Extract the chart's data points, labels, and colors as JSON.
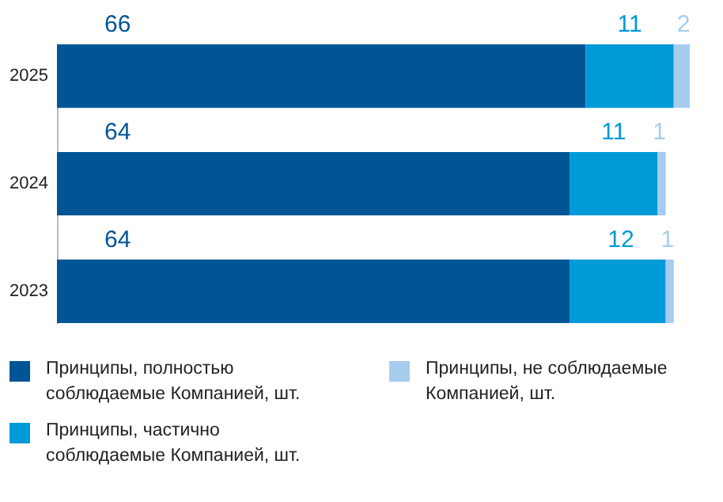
{
  "chart_data": {
    "type": "bar",
    "orientation": "horizontal",
    "stacked": true,
    "data_labels": true,
    "legend": "bottom",
    "categories": [
      "2025",
      "2024",
      "2023"
    ],
    "series": [
      {
        "name": "Принципы, полностью соблюдаемые Компанией, шт.",
        "color": "#005596",
        "values": [
          66,
          64,
          64
        ]
      },
      {
        "name": "Принципы, частично соблюдаемые Компанией, шт.",
        "color": "#009ad8",
        "values": [
          11,
          11,
          12
        ]
      },
      {
        "name": "Принципы, не соблюдаемые Компанией, шт.",
        "color": "#a6cdee",
        "values": [
          2,
          1,
          1
        ]
      }
    ]
  }
}
